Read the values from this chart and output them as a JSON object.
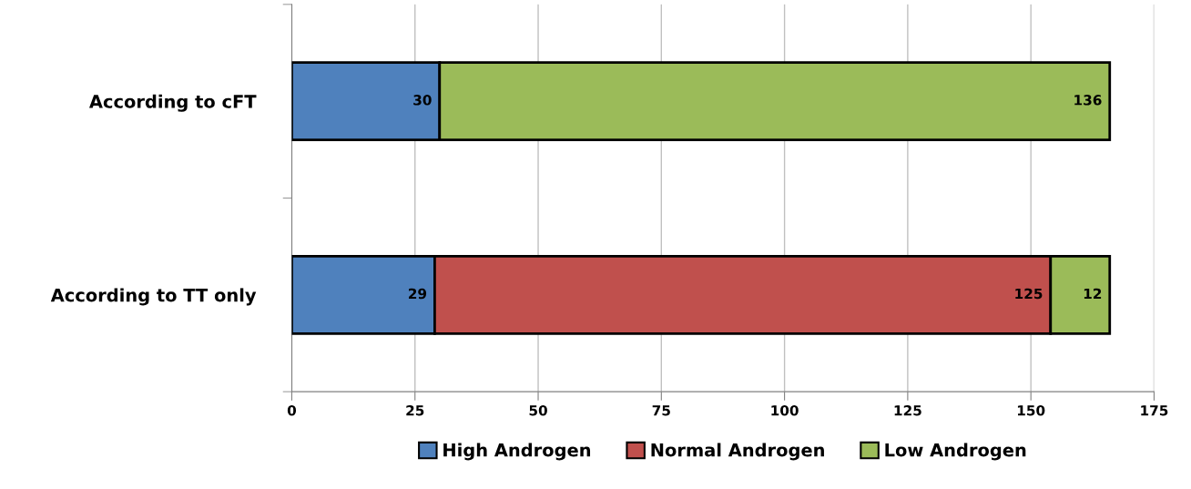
{
  "chart_data": {
    "type": "bar",
    "orientation": "horizontal",
    "stacked": true,
    "categories": [
      "According to cFT",
      "According to TT only"
    ],
    "series": [
      {
        "name": "High Androgen",
        "color": "#4f81bd",
        "values": [
          30,
          29
        ]
      },
      {
        "name": "Normal Androgen",
        "color": "#c0504d",
        "values": [
          null,
          125
        ]
      },
      {
        "name": "Low Androgen",
        "color": "#9bbb59",
        "values": [
          136,
          12
        ]
      }
    ],
    "xlim": [
      0,
      175
    ],
    "xticks": [
      0,
      25,
      50,
      75,
      100,
      125,
      150,
      175
    ],
    "grid": "x",
    "legend": "bottom",
    "data_labels": true
  }
}
